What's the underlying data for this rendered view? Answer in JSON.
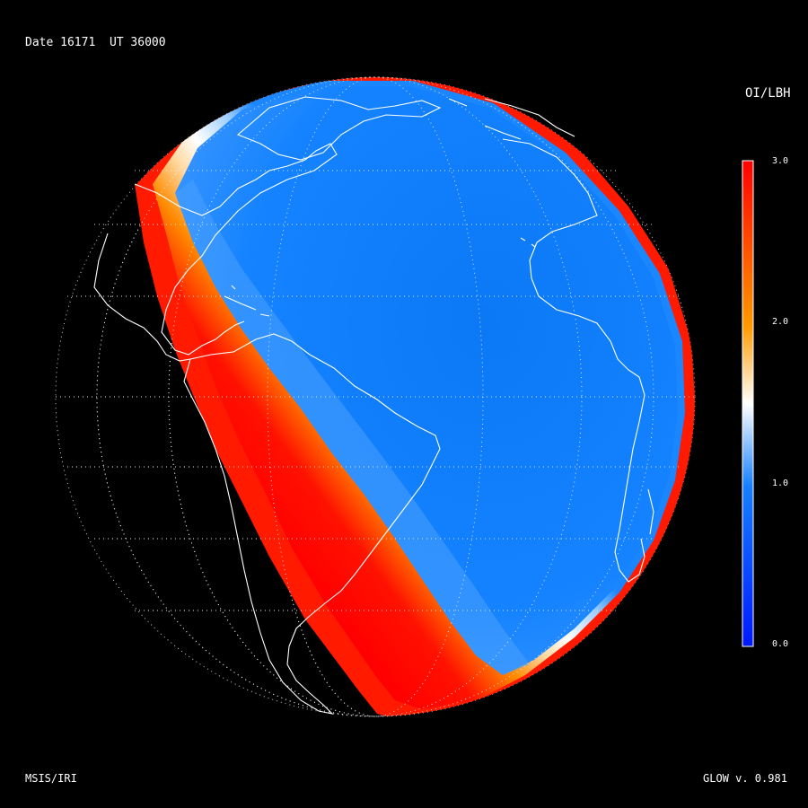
{
  "header": {
    "date_label": "Date",
    "date_value": "16171",
    "ut_label": "UT",
    "ut_value": "36000"
  },
  "footer": {
    "model_label": "MSIS/IRI",
    "version_label": "GLOW v. 0.981"
  },
  "colorbar": {
    "title": "OI/LBH",
    "min": 0.0,
    "max": 3.0,
    "ticks": [
      "3.0",
      "2.0",
      "1.0",
      "0.0"
    ],
    "tick_values": [
      3.0,
      2.0,
      1.0,
      0.0
    ],
    "colors": {
      "low": "#0018ff",
      "mid_low": "#1680ff",
      "mid": "#ffffff",
      "mid_high": "#ff9a00",
      "high": "#ff0000"
    }
  },
  "map": {
    "projection": "orthographic",
    "view": "Atlantic Ocean with South America and Africa",
    "graticule": "dotted",
    "coastlines": "white outlines",
    "terminator_band": "white-orange-red transition diagonal across South America",
    "colors": {
      "background": "#000000",
      "dayside": "#0f7fff",
      "terminator": "#ffffff",
      "night_edge": "#ff0000",
      "limb": "#ff1a00",
      "gridline": "#dddddd"
    }
  }
}
